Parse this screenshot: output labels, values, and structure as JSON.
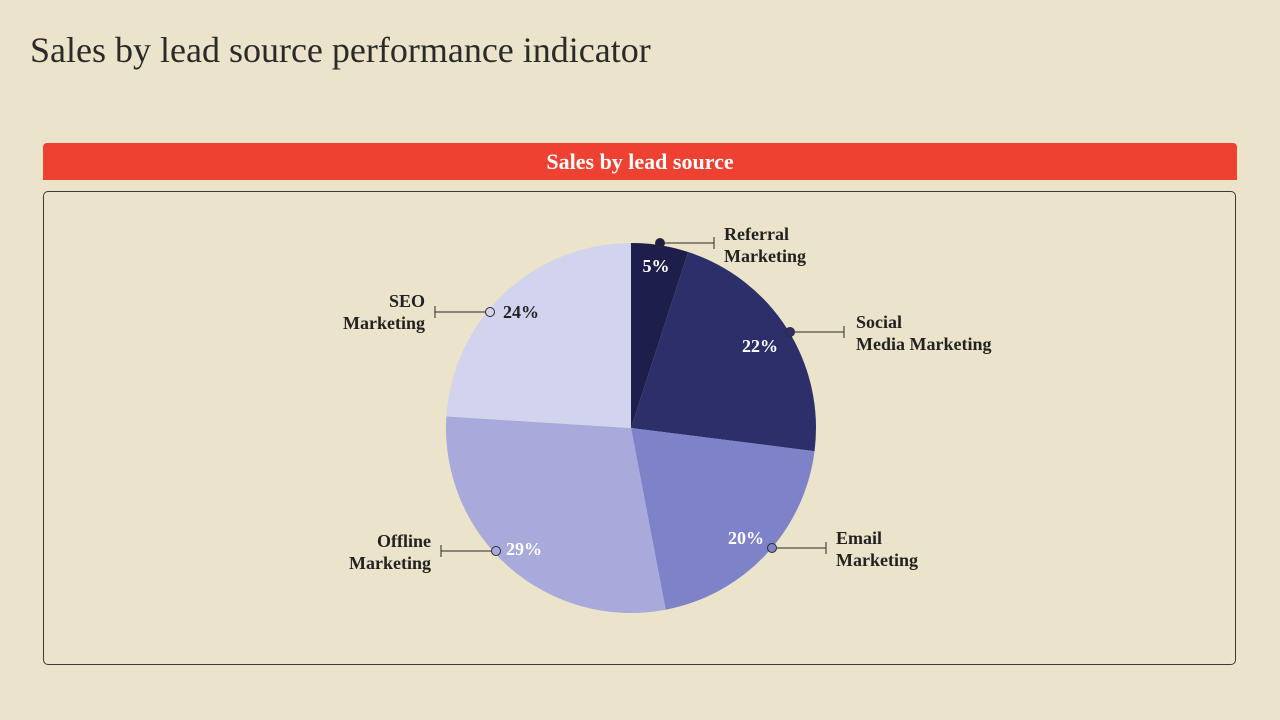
{
  "title": "Sales by lead source performance indicator",
  "chart_header": "Sales by lead source",
  "chart_data": {
    "type": "pie",
    "title": "Sales by lead source",
    "unit": "%",
    "slices": [
      {
        "category": [
          "Referral",
          "Marketing"
        ],
        "value": 5,
        "label": "5%",
        "color": "#1d1f4a",
        "label_color": "#ffffff"
      },
      {
        "category": [
          "Social",
          "Media Marketing"
        ],
        "value": 22,
        "label": "22%",
        "color": "#2c2f69",
        "label_color": "#ffffff"
      },
      {
        "category": [
          "Email",
          "Marketing"
        ],
        "value": 20,
        "label": "20%",
        "color": "#7e82c9",
        "label_color": "#ffffff"
      },
      {
        "category": [
          "Offline",
          "Marketing"
        ],
        "value": 29,
        "label": "29%",
        "color": "#a7aadb",
        "label_color": "#ffffff"
      },
      {
        "category": [
          "SEO",
          "Marketing"
        ],
        "value": 24,
        "label": "24%",
        "color": "#d2d4ed",
        "label_color": "#222222"
      }
    ]
  },
  "colors": {
    "background": "#ebe4cb",
    "banner": "#ee4132",
    "text": "#222222"
  }
}
